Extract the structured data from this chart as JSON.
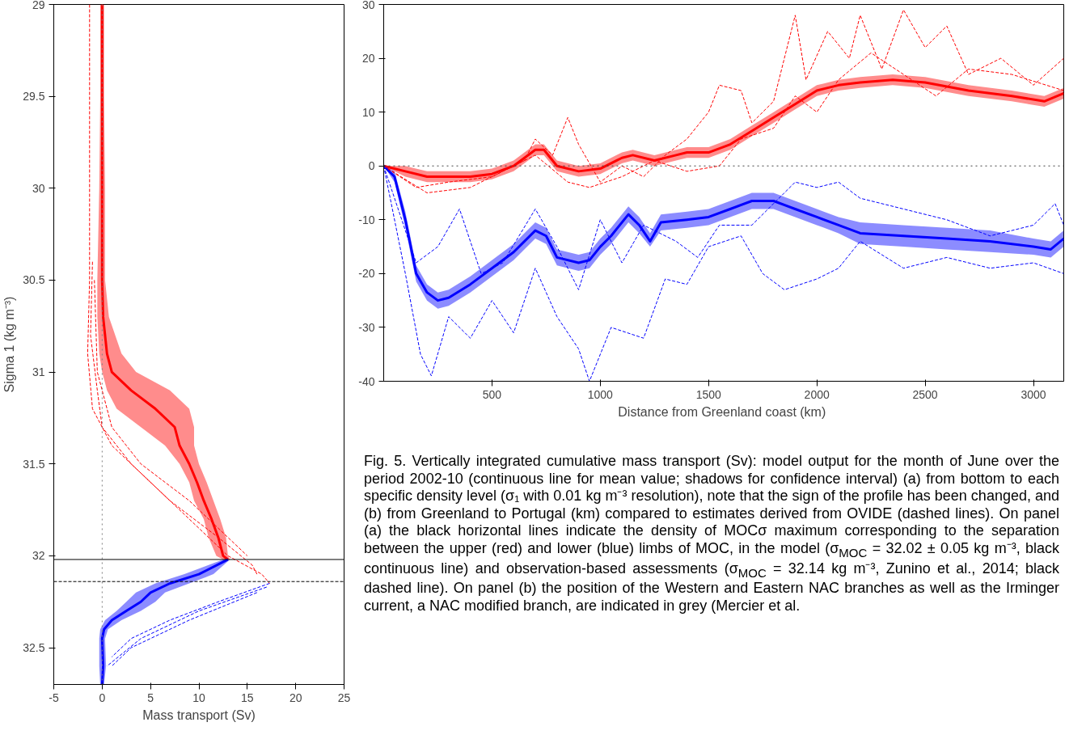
{
  "chart_data": [
    {
      "type": "line",
      "orientation": "horizontal",
      "xlabel": "Mass transport (Sv)",
      "ylabel": "Sigma 1 (kg m⁻³)",
      "xlim": [
        -5,
        25
      ],
      "xticks": [
        -5,
        0,
        5,
        10,
        15,
        20,
        25
      ],
      "ylim": [
        32.7,
        29
      ],
      "yticks": [
        29,
        29.5,
        30,
        30.5,
        31,
        31.5,
        32,
        32.5
      ],
      "grid": false,
      "ref_lines": [
        {
          "axis": "x",
          "value": 0,
          "color": "#808080",
          "line_style": "dotted"
        },
        {
          "axis": "y",
          "value": 32.02,
          "color": "#000000",
          "line_style": "solid"
        },
        {
          "axis": "y",
          "value": 32.14,
          "color": "#000000",
          "line_style": "dashed"
        }
      ],
      "series": [
        {
          "color": "#ff0000",
          "x": [
            29,
            29.5,
            30,
            30.5,
            30.7,
            30.9,
            31,
            31.1,
            31.2,
            31.3,
            31.4,
            31.5,
            31.6,
            31.7,
            31.8,
            31.9,
            32,
            32.02
          ],
          "values": [
            0,
            0,
            0,
            0,
            0.1,
            0.5,
            1,
            3,
            5.5,
            7.5,
            8,
            9,
            9.8,
            10.5,
            11.3,
            12,
            12.5,
            13
          ],
          "lower": [
            -0.2,
            -0.2,
            -0.3,
            -0.5,
            -0.5,
            -0.3,
            0,
            0.5,
            1.5,
            4,
            6.5,
            8,
            9,
            9.5,
            10.5,
            11,
            11.8,
            12.5
          ],
          "upper": [
            0.2,
            0.2,
            0.3,
            0.3,
            0.7,
            2,
            3.5,
            7,
            9,
            9.5,
            9.5,
            10,
            10.8,
            11.5,
            12.2,
            12.8,
            13,
            13.2
          ]
        },
        {
          "color": "#0000ff",
          "x": [
            32.02,
            32.1,
            32.15,
            32.2,
            32.25,
            32.3,
            32.35,
            32.4,
            32.45,
            32.6,
            32.7
          ],
          "values": [
            13,
            10,
            7,
            5,
            4,
            2.5,
            1,
            0.2,
            0,
            0.1,
            0
          ],
          "lower": [
            12.5,
            8.5,
            5.5,
            3.5,
            2.5,
            1.5,
            0.3,
            -0.2,
            -0.3,
            -0.3,
            -0.2
          ],
          "upper": [
            13.2,
            11.5,
            9,
            6.5,
            5.5,
            4,
            2,
            0.6,
            0.3,
            0.4,
            0.2
          ]
        },
        {
          "color": "#ff0000",
          "line_style": "dashed",
          "x": [
            29,
            30.5,
            30.9,
            31.2,
            31.4,
            31.6,
            31.8,
            32,
            32.1,
            32.15
          ],
          "values": [
            -1.3,
            -1.3,
            -1.5,
            -1,
            1,
            5,
            9,
            13,
            16.5,
            17.3
          ]
        },
        {
          "color": "#ff0000",
          "line_style": "dashed",
          "x": [
            30.4,
            30.8,
            31.1,
            31.3,
            31.5,
            31.7,
            31.9,
            32.05,
            32.1
          ],
          "values": [
            -1,
            -1.2,
            -0.5,
            0,
            3,
            7,
            12,
            15.5,
            16
          ]
        },
        {
          "color": "#ff0000",
          "line_style": "dashed",
          "x": [
            30.5,
            31,
            31.3,
            31.5,
            31.7,
            31.9,
            32
          ],
          "values": [
            -0.8,
            -0.5,
            1,
            4,
            9,
            13,
            15
          ]
        },
        {
          "color": "#0000ff",
          "line_style": "dashed",
          "x": [
            32.15,
            32.25,
            32.35,
            32.45,
            32.55
          ],
          "values": [
            17.3,
            12,
            7,
            3,
            1
          ]
        },
        {
          "color": "#0000ff",
          "line_style": "dashed",
          "x": [
            32.17,
            32.3,
            32.45,
            32.6
          ],
          "values": [
            17,
            10,
            4,
            0.5
          ]
        },
        {
          "color": "#0000ff",
          "line_style": "dashed",
          "x": [
            32.2,
            32.35,
            32.5,
            32.6
          ],
          "values": [
            16,
            9,
            3,
            1
          ]
        }
      ]
    },
    {
      "type": "line",
      "xlabel": "Distance from Greenland  coast (km)",
      "xlim": [
        0,
        3140
      ],
      "xticks": [
        500,
        1000,
        1500,
        2000,
        2500,
        3000
      ],
      "ylim": [
        -40,
        30
      ],
      "yticks": [
        -40,
        -30,
        -20,
        -10,
        0,
        10,
        20,
        30
      ],
      "grid": false,
      "ref_lines": [
        {
          "axis": "y",
          "value": 0,
          "color": "#404040",
          "line_style": "dotted"
        }
      ],
      "annotations": [
        "Fig. 5. Vertically integrated cumulative mass transport (Sv): model output for the month of June over the period 2002-10 (continuous line for mean value; shadows for confidence interval) (a) from bottom to each specific density level (σ₁ with 0.01 kg m⁻³ resolution), note that the sign of the profile has been changed, and (b) from Greenland to Portugal (km) compared to estimates derived from OVIDE (dashed lines). On panel (a) the black horizontal lines indicate the density of MOCσ maximum corresponding to the separation between the upper (red) and lower (blue) limbs of MOC, in the model (σ$_{MOC}$ = 32.02 ± 0.05 kg m⁻³, black continuous line) and observation-based assessments (σ$_{MOC}$ = 32.14 kg m⁻³, Zunino et al., 2014; black dashed line). On panel (b) the position of the Western and Eastern NAC branches as well as the Irminger current, a NAC modified branch, are indicated in grey (Mercier et al."
      ],
      "series": [
        {
          "color": "#ff0000",
          "x": [
            0,
            100,
            200,
            300,
            400,
            500,
            600,
            700,
            740,
            800,
            900,
            1000,
            1100,
            1150,
            1250,
            1350,
            1400,
            1500,
            1600,
            1700,
            1800,
            1900,
            2000,
            2100,
            2200,
            2350,
            2500,
            2700,
            2900,
            3050,
            3140
          ],
          "values": [
            0,
            -1,
            -2,
            -2,
            -2,
            -1.5,
            0,
            3,
            3,
            0,
            -1,
            -0.5,
            1.5,
            2,
            1,
            2,
            2.5,
            2.5,
            4,
            6.5,
            9,
            11.5,
            14,
            15,
            15.5,
            16,
            15.5,
            14,
            13,
            12,
            13.5
          ],
          "lower": [
            0,
            -2,
            -3,
            -3,
            -3,
            -2.5,
            -1,
            2,
            2,
            -1,
            -2,
            -1.5,
            0.5,
            1,
            0,
            1,
            1.5,
            1.5,
            3,
            5.5,
            8,
            10.5,
            13,
            14,
            14.5,
            15,
            14.5,
            13,
            12,
            11,
            12.5
          ],
          "upper": [
            0,
            0,
            -1,
            -1,
            -1,
            -0.5,
            1,
            4,
            4,
            1,
            0,
            0.5,
            2.5,
            3,
            2,
            3,
            3.5,
            3.5,
            5,
            7.5,
            10,
            12.5,
            15,
            16,
            16.5,
            17,
            16.5,
            15,
            14,
            13,
            14.5
          ]
        },
        {
          "color": "#0000ff",
          "x": [
            0,
            50,
            100,
            150,
            200,
            250,
            300,
            400,
            500,
            600,
            700,
            750,
            800,
            900,
            950,
            1000,
            1050,
            1130,
            1180,
            1230,
            1280,
            1400,
            1500,
            1600,
            1700,
            1800,
            1900,
            2000,
            2100,
            2200,
            2400,
            2600,
            2800,
            3000,
            3080,
            3140
          ],
          "values": [
            0,
            -2,
            -10,
            -20,
            -23.5,
            -25,
            -24.5,
            -22,
            -19,
            -16,
            -12,
            -13,
            -17,
            -18,
            -17.5,
            -15,
            -13,
            -9,
            -11,
            -14,
            -10.5,
            -10,
            -9.5,
            -8,
            -6.5,
            -6.5,
            -8,
            -9.5,
            -11,
            -12.5,
            -13,
            -13.5,
            -14,
            -15,
            -15.5,
            -13.5
          ],
          "lower": [
            0,
            -3,
            -11.5,
            -21.5,
            -25,
            -26.5,
            -26,
            -23.5,
            -20.5,
            -17.5,
            -13.5,
            -14.5,
            -18.5,
            -19.5,
            -19,
            -16.5,
            -14.5,
            -10.5,
            -12.5,
            -15,
            -12,
            -11.5,
            -11,
            -9.5,
            -8,
            -8,
            -9.5,
            -11,
            -12.5,
            -14.5,
            -15,
            -15.5,
            -16,
            -16.5,
            -17,
            -15
          ],
          "upper": [
            0,
            -1,
            -8.5,
            -18.5,
            -22,
            -23.5,
            -23,
            -20.5,
            -17.5,
            -14.5,
            -10.5,
            -11.5,
            -15.5,
            -16.5,
            -16,
            -13.5,
            -11.5,
            -7.5,
            -9.5,
            -12.5,
            -9,
            -8.5,
            -8,
            -6.5,
            -5,
            -5,
            -6.5,
            -8,
            -9.5,
            -10.5,
            -11,
            -11.5,
            -12,
            -13.5,
            -14,
            -12
          ]
        },
        {
          "color": "#ff0000",
          "line_style": "dashed",
          "x": [
            0,
            150,
            300,
            500,
            650,
            700,
            780,
            850,
            900,
            1000,
            1100,
            1200,
            1300,
            1400,
            1500,
            1550,
            1650,
            1700,
            1800,
            1900,
            1950,
            2050,
            2150,
            2200,
            2300,
            2400,
            2500,
            2600,
            2700,
            2850,
            3000,
            3140
          ],
          "values": [
            0,
            -4,
            -3,
            -2,
            1,
            5,
            2,
            9,
            4,
            -3,
            0,
            -2,
            2,
            5,
            10,
            15,
            14,
            8,
            12,
            28,
            16,
            25,
            20,
            28,
            18,
            29,
            22,
            26,
            17,
            20,
            15,
            20
          ]
        },
        {
          "color": "#ff0000",
          "line_style": "dashed",
          "x": [
            0,
            200,
            400,
            550,
            700,
            850,
            950,
            1100,
            1250,
            1400,
            1550,
            1650,
            1800,
            1900,
            2000,
            2100,
            2250,
            2400,
            2550,
            2700,
            2900,
            3140
          ],
          "values": [
            0,
            -5,
            -4,
            -1,
            2,
            -3,
            -4,
            -2,
            1,
            -1,
            0,
            5,
            7,
            13,
            10,
            16,
            21,
            17,
            13,
            18,
            17,
            14
          ]
        },
        {
          "color": "#0000ff",
          "line_style": "dashed",
          "x": [
            0,
            100,
            170,
            220,
            300,
            400,
            500,
            600,
            700,
            800,
            900,
            950,
            1050,
            1200,
            1300,
            1400,
            1500,
            1650,
            1750,
            1850,
            2000,
            2100,
            2200,
            2400,
            2600,
            2800,
            3000,
            3140
          ],
          "values": [
            0,
            -20,
            -35,
            -39,
            -28,
            -32,
            -25,
            -31,
            -19,
            -28,
            -34,
            -40,
            -30,
            -32,
            -21,
            -22,
            -15,
            -13,
            -20,
            -23,
            -21,
            -19,
            -14,
            -19,
            -17,
            -19,
            -18,
            -20
          ]
        },
        {
          "color": "#0000ff",
          "line_style": "dashed",
          "x": [
            0,
            150,
            250,
            350,
            450,
            550,
            700,
            800,
            900,
            1000,
            1100,
            1200,
            1350,
            1450,
            1550,
            1700,
            1900,
            2000,
            2100,
            2200,
            2400,
            2600,
            2800,
            3000,
            3100,
            3140
          ],
          "values": [
            0,
            -18,
            -15,
            -8,
            -20,
            -18,
            -8,
            -15,
            -23,
            -10,
            -18,
            -11,
            -14,
            -17,
            -11,
            -11,
            -3,
            -4,
            -3,
            -6,
            -8,
            -10,
            -13,
            -11,
            -7,
            -11
          ]
        }
      ]
    }
  ]
}
